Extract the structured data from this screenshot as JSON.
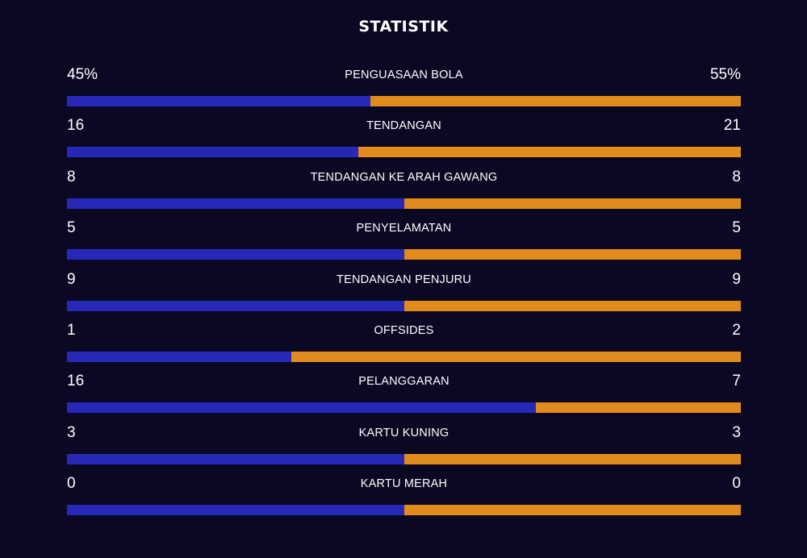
{
  "header": {
    "title": "STATISTIK"
  },
  "colors": {
    "background": "#0a0823",
    "home": "#2828b8",
    "away": "#e08b1c"
  },
  "stats": [
    {
      "label": "PENGUASAAN BOLA",
      "home": "45%",
      "away": "55%",
      "home_value": 45,
      "away_value": 55
    },
    {
      "label": "TENDANGAN",
      "home": "16",
      "away": "21",
      "home_value": 16,
      "away_value": 21
    },
    {
      "label": "TENDANGAN KE ARAH GAWANG",
      "home": "8",
      "away": "8",
      "home_value": 8,
      "away_value": 8
    },
    {
      "label": "PENYELAMATAN",
      "home": "5",
      "away": "5",
      "home_value": 5,
      "away_value": 5
    },
    {
      "label": "TENDANGAN PENJURU",
      "home": "9",
      "away": "9",
      "home_value": 9,
      "away_value": 9
    },
    {
      "label": "OFFSIDES",
      "home": "1",
      "away": "2",
      "home_value": 1,
      "away_value": 2
    },
    {
      "label": "PELANGGARAN",
      "home": "16",
      "away": "7",
      "home_value": 16,
      "away_value": 7
    },
    {
      "label": "KARTU KUNING",
      "home": "3",
      "away": "3",
      "home_value": 3,
      "away_value": 3
    },
    {
      "label": "KARTU MERAH",
      "home": "0",
      "away": "0",
      "home_value": 0,
      "away_value": 0
    }
  ],
  "chart_data": {
    "type": "bar",
    "title": "STATISTIK",
    "categories": [
      "PENGUASAAN BOLA",
      "TENDANGAN",
      "TENDANGAN KE ARAH GAWANG",
      "PENYELAMATAN",
      "TENDANGAN PENJURU",
      "OFFSIDES",
      "PELANGGARAN",
      "KARTU KUNING",
      "KARTU MERAH"
    ],
    "series": [
      {
        "values": [
          45,
          16,
          8,
          5,
          9,
          1,
          16,
          3,
          0
        ]
      },
      {
        "values": [
          55,
          21,
          8,
          5,
          9,
          2,
          7,
          3,
          0
        ]
      }
    ],
    "orientation": "horizontal-split",
    "legend": "none",
    "grid": false
  }
}
